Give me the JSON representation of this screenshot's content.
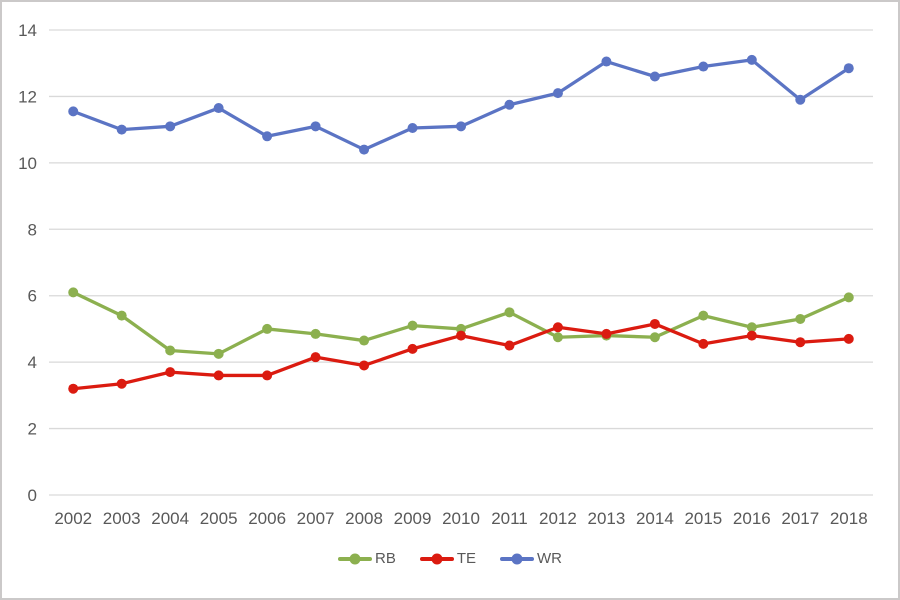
{
  "chart_data": {
    "type": "line",
    "x": [
      "2002",
      "2003",
      "2004",
      "2005",
      "2006",
      "2007",
      "2008",
      "2009",
      "2010",
      "2011",
      "2012",
      "2013",
      "2014",
      "2015",
      "2016",
      "2017",
      "2018"
    ],
    "series": [
      {
        "name": "RB",
        "color": "#8CB04F",
        "values": [
          6.1,
          5.4,
          4.35,
          4.25,
          5.0,
          4.85,
          4.65,
          5.1,
          5.0,
          5.5,
          4.75,
          4.8,
          4.75,
          5.4,
          5.05,
          5.3,
          5.95
        ]
      },
      {
        "name": "TE",
        "color": "#DB1B10",
        "values": [
          3.2,
          3.35,
          3.7,
          3.6,
          3.6,
          4.15,
          3.9,
          4.4,
          4.8,
          4.5,
          5.05,
          4.85,
          5.15,
          4.55,
          4.8,
          4.6,
          4.7
        ]
      },
      {
        "name": "WR",
        "color": "#5B74C4",
        "values": [
          11.55,
          11.0,
          11.1,
          11.65,
          10.8,
          11.1,
          10.4,
          11.05,
          11.1,
          11.75,
          12.1,
          13.05,
          12.6,
          12.9,
          13.1,
          11.9,
          12.85
        ]
      }
    ],
    "title": "",
    "xlabel": "",
    "ylabel": "",
    "ylim": [
      0,
      14
    ],
    "yticks": [
      0,
      2,
      4,
      6,
      8,
      10,
      12,
      14
    ],
    "grid": true,
    "legend_position": "bottom"
  },
  "style": {
    "background": "#FFFFFF",
    "border_color": "#CBC9C9",
    "gridline_color": "#D9D9D9",
    "tick_label_color": "#595959",
    "tick_font_size": 17,
    "line_width": 3.3,
    "marker_radius": 5
  }
}
